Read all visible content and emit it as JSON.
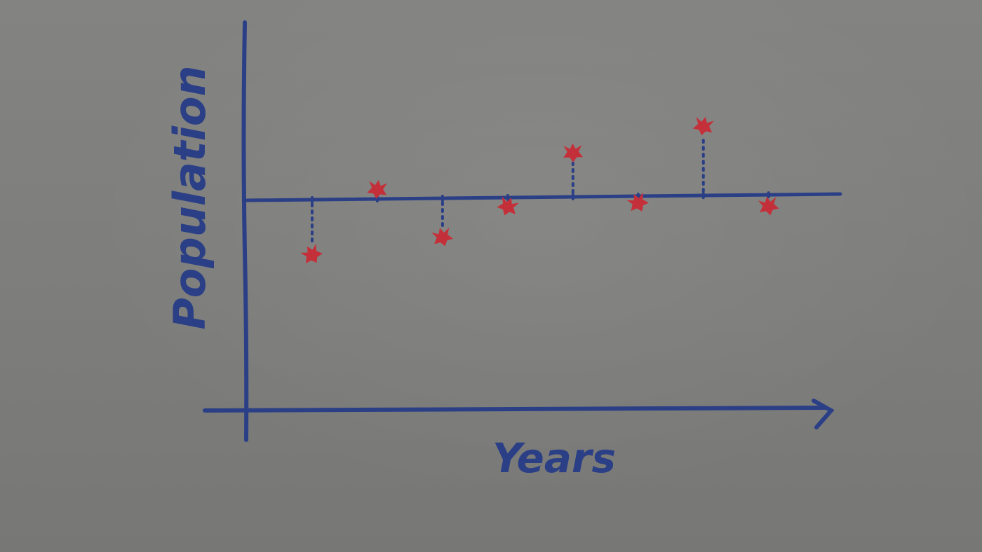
{
  "chart_data": {
    "type": "scatter",
    "title": "",
    "xlabel": "Years",
    "ylabel": "Population",
    "x": [
      1,
      2,
      3,
      4,
      5,
      6,
      7,
      8
    ],
    "values": [
      -1.2,
      0.2,
      -0.85,
      -0.2,
      0.95,
      -0.15,
      1.5,
      -0.25
    ],
    "series_style": "stem plot: dotted vertical lines from a horizontal reference line to each point",
    "ylim": [
      -4.2,
      4.2
    ],
    "xlim": [
      0,
      9.1
    ],
    "grid": false,
    "legend": "none",
    "colors": {
      "axes": "#2b3f86",
      "points": "#c4303a",
      "background": "#7f7f7d"
    }
  }
}
